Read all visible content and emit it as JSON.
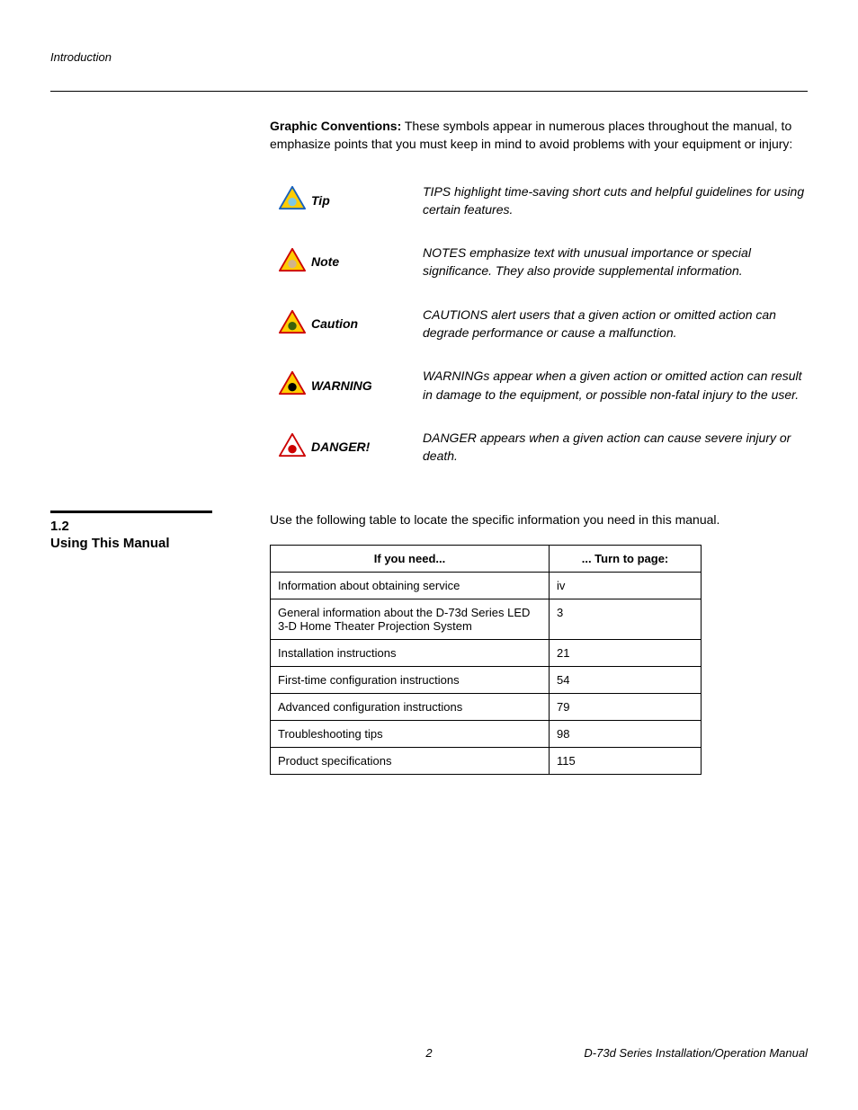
{
  "header": {
    "section_label": "Introduction"
  },
  "intro": {
    "bold_lead": "Graphic Conventions:",
    "text": " These symbols appear in numerous places throughout the manual, to emphasize points that you must keep in mind to avoid problems with your equipment or injury:"
  },
  "conventions": [
    {
      "label": "Tip",
      "desc": "TIPS highlight time-saving short cuts and helpful guidelines for using certain features.",
      "icon": "tip",
      "border": "#1560bd",
      "fill": "#ffcc00",
      "inner_fill": "#7ec8e3",
      "upper": false
    },
    {
      "label": "Note",
      "desc": "NOTES emphasize text with unusual importance or special significance. They also provide supplemental information.",
      "icon": "note",
      "border": "#cc0000",
      "fill": "#ffcc00",
      "inner_fill": "#d2b48c",
      "upper": false
    },
    {
      "label": "Caution",
      "desc": "CAUTIONS alert users that a given action or omitted action can degrade performance or cause a malfunction.",
      "icon": "caution",
      "border": "#cc0000",
      "fill": "#ffcc00",
      "inner_fill": "#3a5f0b",
      "upper": false
    },
    {
      "label": "WARNING",
      "desc": "WARNINGs appear when a given action or omitted action can result in damage to the equipment, or possible non-fatal injury to the user.",
      "icon": "warning",
      "border": "#cc0000",
      "fill": "#ffcc00",
      "inner_fill": "#000000",
      "upper": true
    },
    {
      "label": "DANGER!",
      "desc": "DANGER appears when a given action can cause severe injury or death.",
      "icon": "danger",
      "border": "#cc0000",
      "fill": "#ffffff",
      "inner_fill": "#cc0000",
      "upper": true
    }
  ],
  "section": {
    "number": "1.2",
    "title": "Using This Manual",
    "intro": "Use the following table to locate the specific information you need in this manual.",
    "table": {
      "headers": [
        "If you need...",
        "... Turn to page:"
      ],
      "rows": [
        [
          "Information about obtaining service",
          "iv"
        ],
        [
          "General information about the D-73d Series LED 3-D Home Theater Projection System",
          "3"
        ],
        [
          "Installation instructions",
          "21"
        ],
        [
          "First-time configuration instructions",
          "54"
        ],
        [
          "Advanced configuration instructions",
          "79"
        ],
        [
          "Troubleshooting tips",
          "98"
        ],
        [
          "Product specifications",
          "115"
        ]
      ]
    }
  },
  "footer": {
    "page": "2",
    "doc_title": "D-73d Series Installation/Operation Manual"
  },
  "icon_symbols": {
    "tip": "💡",
    "note": "✋",
    "caution": "⬢",
    "warning": "❗",
    "danger": "⚡"
  }
}
